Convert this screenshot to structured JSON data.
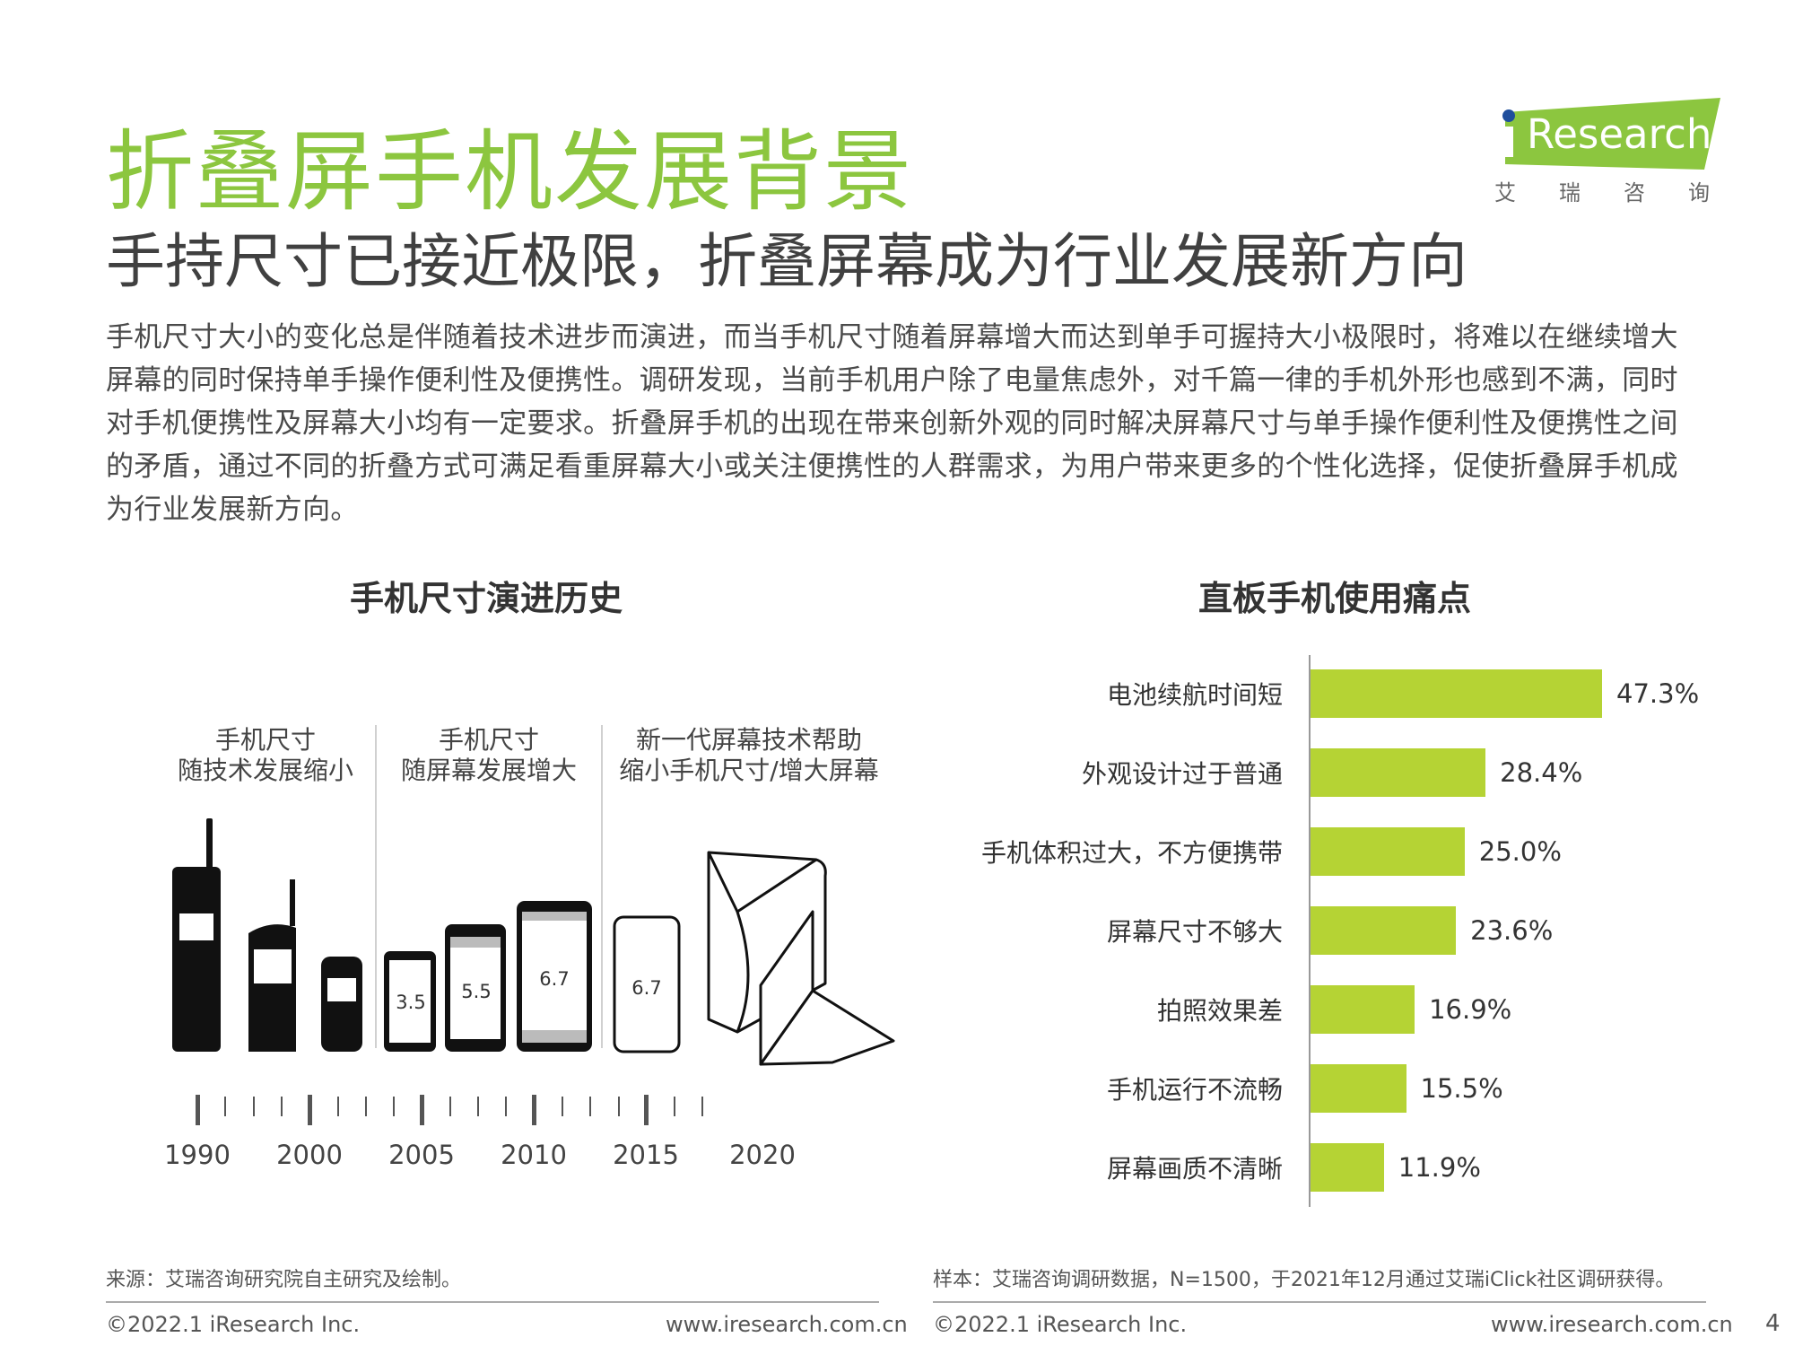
{
  "header": {
    "title": "折叠屏手机发展背景",
    "subtitle": "手持尺寸已接近极限，折叠屏幕成为行业发展新方向"
  },
  "logo": {
    "text": "Research",
    "cn": [
      "艾",
      "瑞",
      "咨",
      "询"
    ],
    "color": "#8cc63f",
    "dot_color": "#1f4e9c"
  },
  "intro": "手机尺寸大小的变化总是伴随着技术进步而演进，而当手机尺寸随着屏幕增大而达到单手可握持大小极限时，将难以在继续增大屏幕的同时保持单手操作便利性及便携性。调研发现，当前手机用户除了电量焦虑外，对千篇一律的手机外形也感到不满，同时对手机便携性及屏幕大小均有一定要求。折叠屏手机的出现在带来创新外观的同时解决屏幕尺寸与单手操作便利性及便携性之间的矛盾，通过不同的折叠方式可满足看重屏幕大小或关注便携性的人群需求，为用户带来更多的个性化选择，促使折叠屏手机成为行业发展新方向。",
  "left_panel": {
    "title": "手机尺寸演进历史",
    "eras": [
      {
        "line1": "手机尺寸",
        "line2": "随技术发展缩小"
      },
      {
        "line1": "手机尺寸",
        "line2": "随屏幕发展增大"
      },
      {
        "line1": "新一代屏幕技术帮助",
        "line2": "缩小手机尺寸/增大屏幕"
      }
    ],
    "screen_sizes": [
      "3.5",
      "5.5",
      "6.7",
      "6.7"
    ],
    "years": [
      "1990",
      "2000",
      "2005",
      "2010",
      "2015",
      "2020"
    ]
  },
  "chart_data": {
    "type": "bar",
    "orientation": "horizontal",
    "title": "直板手机使用痛点",
    "categories": [
      "电池续航时间短",
      "外观设计过于普通",
      "手机体积过大，不方便携带",
      "屏幕尺寸不够大",
      "拍照效果差",
      "手机运行不流畅",
      "屏幕画质不清晰"
    ],
    "values": [
      47.3,
      28.4,
      25.0,
      23.6,
      16.9,
      15.5,
      11.9
    ],
    "value_labels": [
      "47.3%",
      "28.4%",
      "25.0%",
      "23.6%",
      "16.9%",
      "15.5%",
      "11.9%"
    ],
    "unit": "%",
    "color": "#b5d334",
    "grid": false,
    "legend": "none"
  },
  "footer": {
    "source_left": "来源：艾瑞咨询研究院自主研究及绘制。",
    "source_right": "样本：艾瑞咨询调研数据，N=1500，于2021年12月通过艾瑞iClick社区调研获得。",
    "copyright": "©2022.1 iResearch Inc.",
    "website": "www.iresearch.com.cn",
    "page": "4"
  }
}
